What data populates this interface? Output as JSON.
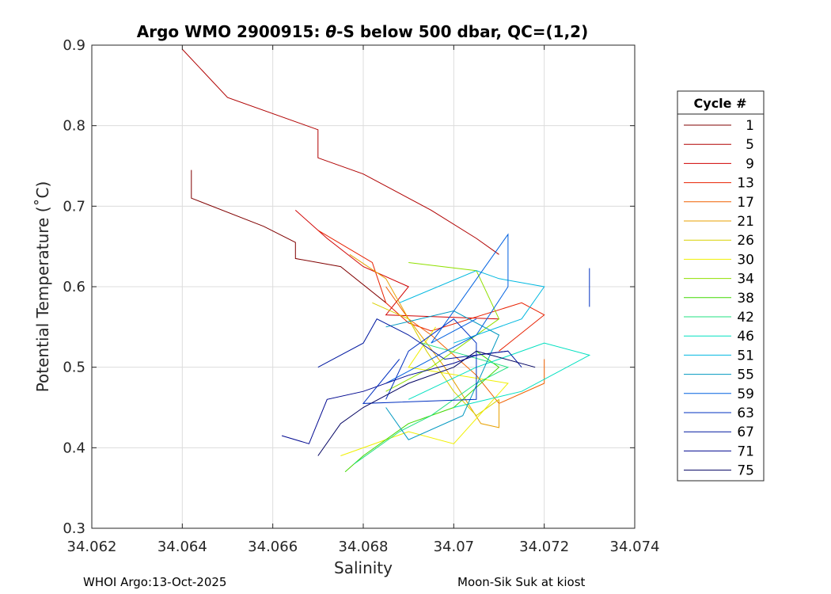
{
  "chart_data": {
    "type": "line",
    "title_prefix": "Argo WMO 2900915: ",
    "title_symbol": "θ",
    "title_suffix": "-S below 500 dbar,  QC=(1,2)",
    "xlabel": "Salinity",
    "ylabel": "Potential Temperature (˚C)",
    "xlim": [
      34.062,
      34.074
    ],
    "ylim": [
      0.3,
      0.9
    ],
    "xticks": [
      34.062,
      34.064,
      34.066,
      34.068,
      34.07,
      34.072,
      34.074
    ],
    "xtick_labels": [
      "34.062",
      "34.064",
      "34.066",
      "34.068",
      "34.07",
      "34.072",
      "34.074"
    ],
    "yticks": [
      0.3,
      0.4,
      0.5,
      0.6,
      0.7,
      0.8,
      0.9
    ],
    "ytick_labels": [
      "0.3",
      "0.4",
      "0.5",
      "0.6",
      "0.7",
      "0.8",
      "0.9"
    ],
    "grid": true,
    "legend_title": "Cycle #",
    "legend_position": "right",
    "series": [
      {
        "name": "1",
        "color": "#800000",
        "x": [
          34.0642,
          34.0642,
          34.0658,
          34.0665,
          34.0665,
          34.0675,
          34.0685
        ],
        "y": [
          0.745,
          0.71,
          0.675,
          0.655,
          0.635,
          0.625,
          0.58
        ]
      },
      {
        "name": "5",
        "color": "#b00000",
        "x": [
          34.064,
          34.065,
          34.067,
          34.067,
          34.068,
          34.0695,
          34.0705,
          34.071
        ],
        "y": [
          0.895,
          0.835,
          0.795,
          0.76,
          0.74,
          0.695,
          0.66,
          0.64
        ]
      },
      {
        "name": "9",
        "color": "#d00000",
        "x": [
          34.0665,
          34.0672,
          34.068,
          34.069,
          34.0685,
          34.071
        ],
        "y": [
          0.695,
          0.66,
          0.625,
          0.6,
          0.565,
          0.56
        ]
      },
      {
        "name": "13",
        "color": "#e82000",
        "x": [
          34.067,
          34.0682,
          34.0685,
          34.069,
          34.0695,
          34.0715,
          34.072,
          34.071
        ],
        "y": [
          0.67,
          0.63,
          0.58,
          0.555,
          0.545,
          0.58,
          0.565,
          0.52
        ]
      },
      {
        "name": "17",
        "color": "#f06000",
        "x": [
          34.0685,
          34.069,
          34.0695,
          34.0705,
          34.071,
          34.072,
          34.072
        ],
        "y": [
          0.6,
          0.56,
          0.54,
          0.49,
          0.455,
          0.48,
          0.51
        ]
      },
      {
        "name": "21",
        "color": "#e8a000",
        "x": [
          34.0677,
          34.0685,
          34.069,
          34.0698,
          34.0706,
          34.071,
          34.071
        ],
        "y": [
          0.64,
          0.61,
          0.56,
          0.5,
          0.43,
          0.425,
          0.46
        ]
      },
      {
        "name": "26",
        "color": "#d8d000",
        "x": [
          34.0682,
          34.069,
          34.0694,
          34.07,
          34.0705,
          34.071
        ],
        "y": [
          0.58,
          0.56,
          0.52,
          0.47,
          0.44,
          0.46
        ]
      },
      {
        "name": "30",
        "color": "#f0f000",
        "x": [
          34.0675,
          34.069,
          34.07,
          34.0712,
          34.069,
          34.0696
        ],
        "y": [
          0.39,
          0.42,
          0.405,
          0.48,
          0.5,
          0.55
        ]
      },
      {
        "name": "34",
        "color": "#90e000",
        "x": [
          34.069,
          34.0705,
          34.071,
          34.0695,
          34.0685
        ],
        "y": [
          0.63,
          0.62,
          0.56,
          0.5,
          0.47
        ]
      },
      {
        "name": "38",
        "color": "#40d800",
        "x": [
          34.0676,
          34.068,
          34.069,
          34.07,
          34.071,
          34.0705
        ],
        "y": [
          0.37,
          0.39,
          0.43,
          0.45,
          0.5,
          0.52
        ]
      },
      {
        "name": "42",
        "color": "#20e080",
        "x": [
          34.0678,
          34.0688,
          34.0695,
          34.0705,
          34.0712,
          34.0693
        ],
        "y": [
          0.38,
          0.42,
          0.44,
          0.48,
          0.5,
          0.53
        ]
      },
      {
        "name": "46",
        "color": "#00e0c0",
        "x": [
          34.069,
          34.0705,
          34.072,
          34.073,
          34.0715,
          34.07
        ],
        "y": [
          0.46,
          0.5,
          0.53,
          0.515,
          0.47,
          0.45
        ]
      },
      {
        "name": "51",
        "color": "#00b8e0",
        "x": [
          34.0688,
          34.0705,
          34.071,
          34.072,
          34.0715,
          34.07
        ],
        "y": [
          0.58,
          0.62,
          0.61,
          0.6,
          0.56,
          0.53
        ]
      },
      {
        "name": "55",
        "color": "#0098c0",
        "x": [
          34.0685,
          34.07,
          34.071,
          34.0702,
          34.069,
          34.0685
        ],
        "y": [
          0.55,
          0.57,
          0.54,
          0.44,
          0.41,
          0.45
        ]
      },
      {
        "name": "59",
        "color": "#0060e0",
        "x": [
          34.0685,
          34.0705,
          34.0712,
          34.0712,
          34.0695,
          34.0705
        ],
        "y": [
          0.48,
          0.54,
          0.6,
          0.665,
          0.53,
          0.56
        ]
      },
      {
        "name": "63",
        "color": "#0030c0",
        "x": [
          34.0685,
          34.069,
          34.07,
          34.0705,
          34.0705,
          34.068,
          34.0688
        ],
        "y": [
          0.46,
          0.52,
          0.56,
          0.53,
          0.46,
          0.455,
          0.51
        ]
      },
      {
        "name": "67",
        "color": "#0018a0",
        "x": [
          34.067,
          34.068,
          34.0683,
          34.069,
          34.0698,
          34.0712,
          34.0715
        ],
        "y": [
          0.5,
          0.53,
          0.56,
          0.54,
          0.51,
          0.52,
          0.5
        ]
      },
      {
        "name": "71",
        "color": "#000890",
        "x": [
          34.0662,
          34.0668,
          34.0672,
          34.068,
          34.069,
          34.07,
          34.0705,
          34.0712
        ],
        "y": [
          0.415,
          0.405,
          0.46,
          0.47,
          0.49,
          0.505,
          0.515,
          0.52
        ]
      },
      {
        "name": "75",
        "color": "#000060",
        "x": [
          34.067,
          34.0675,
          34.068,
          34.069,
          34.07,
          34.0705,
          34.0718
        ],
        "y": [
          0.39,
          0.43,
          0.45,
          0.48,
          0.5,
          0.52,
          0.5
        ]
      },
      {
        "name": "",
        "color": "#0030c0",
        "x": [
          34.073,
          34.073
        ],
        "y": [
          0.575,
          0.623
        ]
      }
    ]
  },
  "footer": {
    "left": "WHOI Argo:13-Oct-2025",
    "right": "Moon-Sik Suk at kiost"
  }
}
